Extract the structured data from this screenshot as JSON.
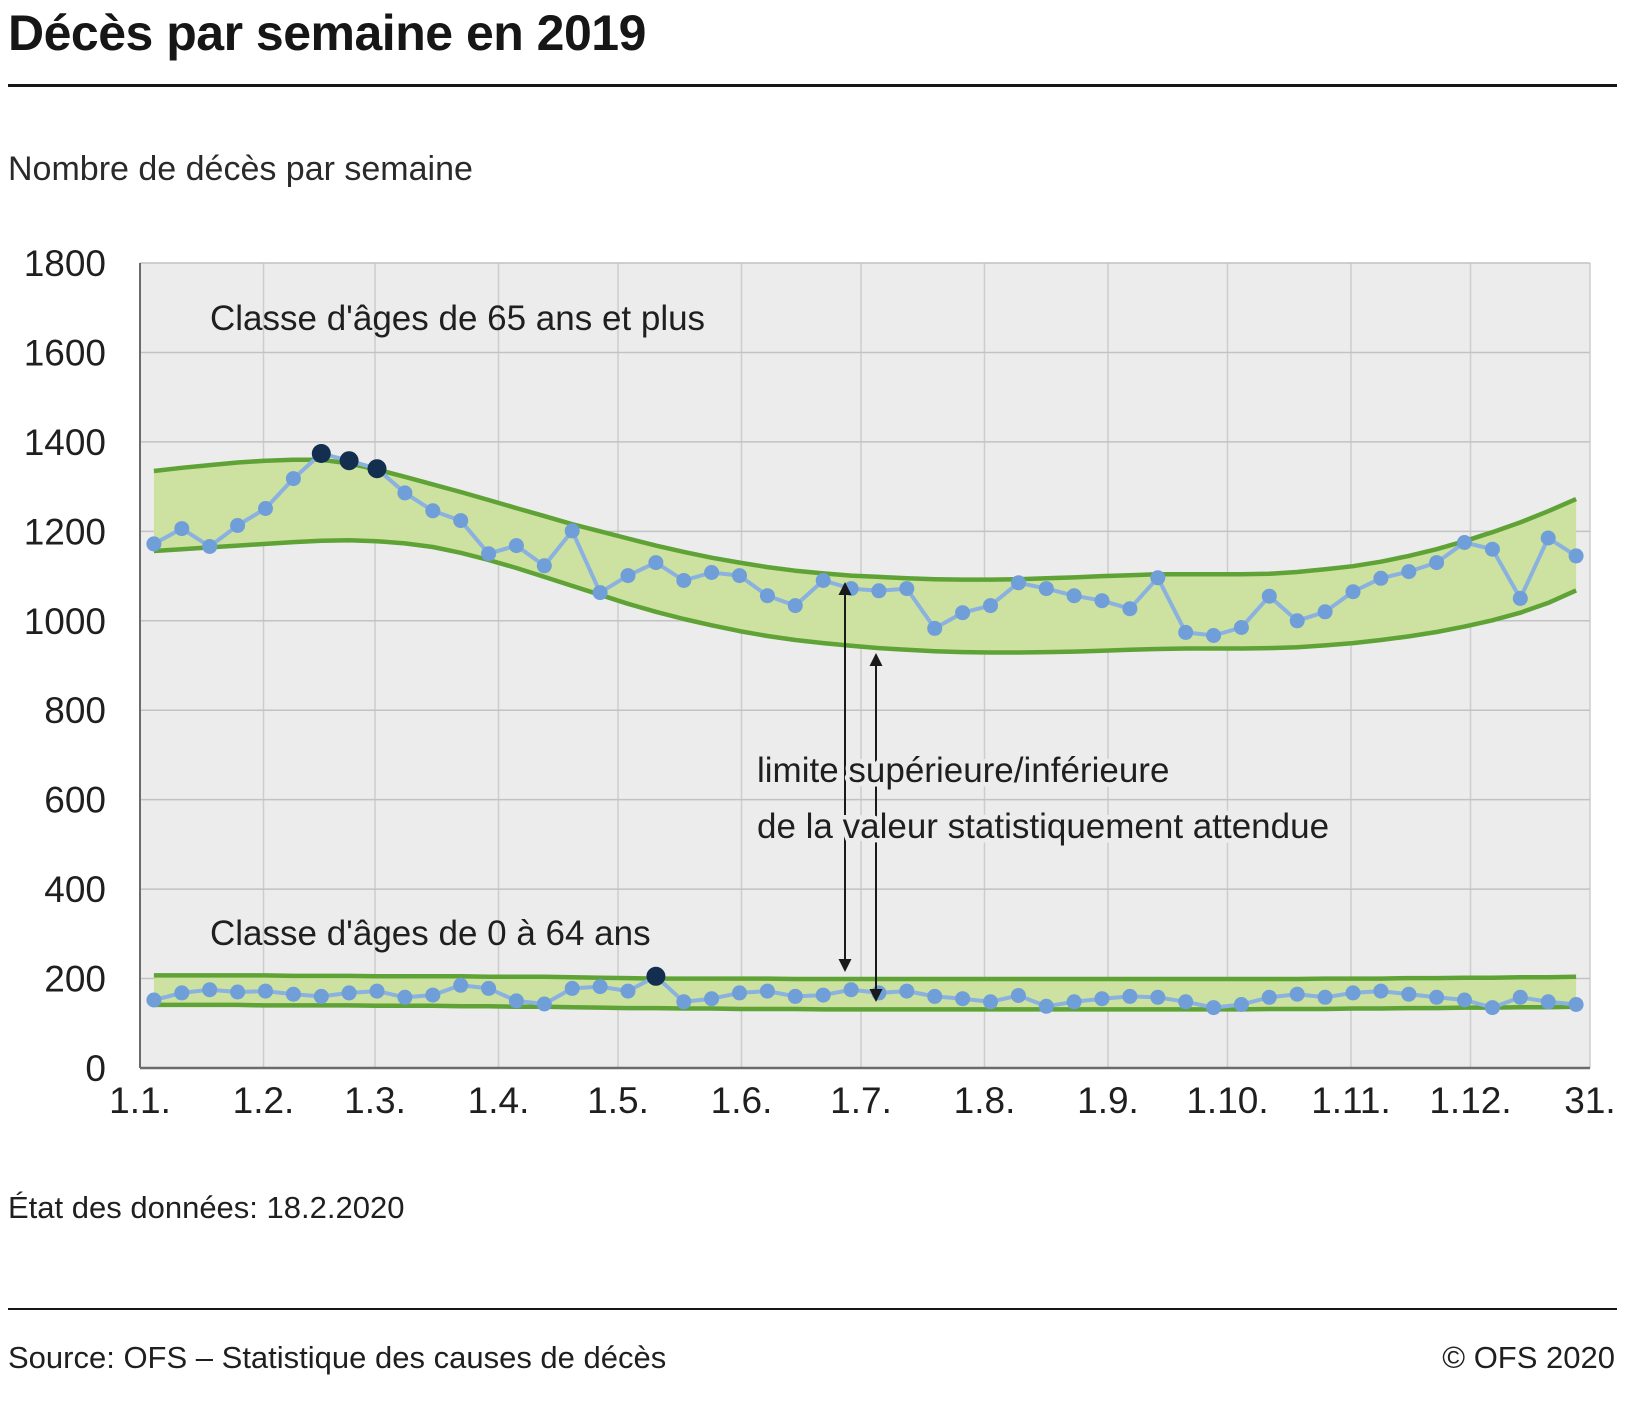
{
  "page": {
    "title": "Décès par semaine en 2019",
    "subtitle": "Nombre de décès par semaine",
    "data_state": "État des données: 18.2.2020",
    "source": "Source: OFS – Statistique des causes de décès",
    "copyright": "© OFS 2020"
  },
  "chart_data": {
    "type": "line",
    "title": "Décès par semaine en 2019",
    "ylabel": "Nombre de décès par semaine",
    "ylim": [
      0,
      1800
    ],
    "ytick_step": 200,
    "x_axis_days": 364,
    "x_tick_days": [
      0,
      31,
      59,
      90,
      120,
      151,
      181,
      212,
      243,
      273,
      304,
      334,
      364
    ],
    "x_tick_labels": [
      "1.1.",
      "1.2.",
      "1.3.",
      "1.4.",
      "1.5.",
      "1.6.",
      "1.7.",
      "1.8.",
      "1.9.",
      "1.10.",
      "1.11.",
      "1.12.",
      "31."
    ],
    "grid": true,
    "legend_position": "none",
    "annotation": {
      "line1": "limite supérieure/inférieure",
      "line2": "de la valeur statistiquement attendue"
    },
    "series": [
      {
        "name": "Classe d'âges de 65 ans et plus",
        "observed": [
          1172,
          1206,
          1166,
          1213,
          1251,
          1318,
          1374,
          1358,
          1340,
          1286,
          1246,
          1224,
          1150,
          1168,
          1123,
          1201,
          1063,
          1101,
          1130,
          1090,
          1108,
          1101,
          1056,
          1034,
          1090,
          1072,
          1067,
          1072,
          983,
          1018,
          1034,
          1085,
          1072,
          1056,
          1045,
          1027,
          1096,
          974,
          967,
          985,
          1055,
          1000,
          1020,
          1065,
          1095,
          1110,
          1130,
          1175,
          1160,
          1050,
          1185,
          1145
        ],
        "upper": [
          1335,
          1342,
          1348,
          1354,
          1358,
          1360,
          1360,
          1352,
          1338,
          1322,
          1305,
          1288,
          1270,
          1252,
          1234,
          1216,
          1200,
          1184,
          1168,
          1154,
          1141,
          1130,
          1120,
          1112,
          1106,
          1101,
          1098,
          1095,
          1093,
          1092,
          1092,
          1093,
          1095,
          1097,
          1100,
          1102,
          1104,
          1104,
          1104,
          1104,
          1105,
          1109,
          1115,
          1122,
          1132,
          1145,
          1160,
          1178,
          1198,
          1220,
          1245,
          1272
        ],
        "lower": [
          1156,
          1160,
          1164,
          1168,
          1172,
          1176,
          1179,
          1180,
          1178,
          1173,
          1165,
          1152,
          1136,
          1118,
          1098,
          1078,
          1058,
          1038,
          1020,
          1004,
          990,
          977,
          966,
          957,
          950,
          944,
          939,
          935,
          932,
          930,
          929,
          929,
          930,
          931,
          933,
          935,
          937,
          938,
          938,
          938,
          939,
          941,
          945,
          950,
          957,
          965,
          975,
          987,
          1001,
          1018,
          1040,
          1068
        ],
        "exceedance_weeks": [
          6,
          7,
          8
        ]
      },
      {
        "name": "Classe d'âges de 0 à 64 ans",
        "observed": [
          152,
          168,
          175,
          170,
          172,
          165,
          160,
          168,
          172,
          158,
          163,
          185,
          178,
          150,
          143,
          178,
          182,
          172,
          205,
          148,
          155,
          168,
          172,
          160,
          163,
          175,
          168,
          172,
          160,
          155,
          148,
          162,
          138,
          148,
          155,
          160,
          158,
          148,
          135,
          142,
          158,
          165,
          158,
          168,
          172,
          165,
          158,
          152,
          135,
          158,
          148,
          142
        ],
        "upper": [
          207,
          207,
          207,
          207,
          207,
          206,
          206,
          206,
          205,
          205,
          205,
          205,
          204,
          204,
          204,
          203,
          202,
          201,
          200,
          200,
          200,
          200,
          200,
          199,
          199,
          199,
          199,
          199,
          199,
          199,
          199,
          199,
          199,
          199,
          199,
          199,
          199,
          199,
          199,
          199,
          199,
          199,
          200,
          200,
          200,
          201,
          201,
          202,
          202,
          203,
          203,
          204
        ],
        "lower": [
          141,
          141,
          141,
          141,
          140,
          140,
          140,
          140,
          139,
          139,
          139,
          138,
          138,
          137,
          137,
          136,
          135,
          134,
          134,
          133,
          133,
          132,
          132,
          132,
          131,
          131,
          131,
          131,
          131,
          131,
          131,
          131,
          131,
          131,
          131,
          131,
          131,
          131,
          131,
          131,
          132,
          132,
          132,
          133,
          133,
          134,
          134,
          135,
          135,
          136,
          136,
          137
        ],
        "exceedance_weeks": [
          18
        ]
      }
    ],
    "colors": {
      "band_fill": "#cde1a0",
      "band_line": "#5fa336",
      "line": "#8ab1e0",
      "point": "#6f9ed8",
      "point_exceed": "#132e4e",
      "plot_bg": "#ececec",
      "grid": "#c2c2c2",
      "grid_vertical": "#cdcdcd",
      "axis": "#6b6b6b",
      "text": "#1f1f1f"
    }
  }
}
